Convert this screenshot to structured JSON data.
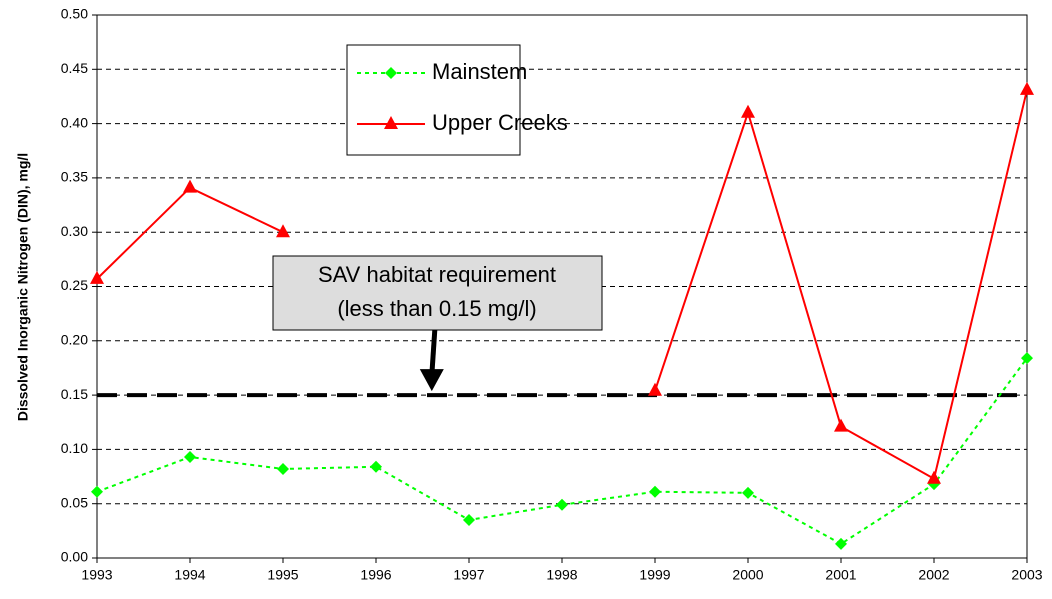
{
  "chart_data": {
    "type": "line",
    "y_label": "Dissolved Inorganic Nitrogen (DIN), mg/l",
    "x": [
      1993,
      1994,
      1995,
      1996,
      1997,
      1998,
      1999,
      2000,
      2001,
      2002,
      2003
    ],
    "xlim": [
      1993,
      2003
    ],
    "xticks": [
      1993,
      1994,
      1995,
      1996,
      1997,
      1998,
      1999,
      2000,
      2001,
      2002,
      2003
    ],
    "ylim": [
      0,
      0.5
    ],
    "yticks": [
      {
        "value": 0,
        "label": "0.00"
      },
      {
        "value": 0.05,
        "label": "0.05"
      },
      {
        "value": 0.1,
        "label": "0.10"
      },
      {
        "value": 0.15,
        "label": "0.15"
      },
      {
        "value": 0.2,
        "label": "0.20"
      },
      {
        "value": 0.25,
        "label": "0.25"
      },
      {
        "value": 0.3,
        "label": "0.30"
      },
      {
        "value": 0.35,
        "label": "0.35"
      },
      {
        "value": 0.4,
        "label": "0.40"
      },
      {
        "value": 0.45,
        "label": "0.45"
      },
      {
        "value": 0.5,
        "label": "0.50"
      }
    ],
    "grid": true,
    "series": [
      {
        "name": "Mainstem",
        "color": "#00ff00",
        "marker": "diamond",
        "line_style": "dotted",
        "values": [
          0.061,
          0.093,
          0.082,
          0.084,
          0.035,
          0.049,
          0.061,
          0.06,
          0.013,
          0.068,
          0.184
        ]
      },
      {
        "name": "Upper Creeks",
        "color": "#ff0000",
        "marker": "triangle",
        "line_style": "solid",
        "values": [
          0.257,
          0.341,
          0.3,
          null,
          null,
          null,
          0.154,
          0.41,
          0.121,
          0.073,
          0.431
        ]
      }
    ],
    "reference_line": 0.15,
    "annotation": {
      "lines": [
        "SAV habitat requirement",
        "(less than 0.15 mg/l)"
      ],
      "x": 1996.6
    }
  }
}
